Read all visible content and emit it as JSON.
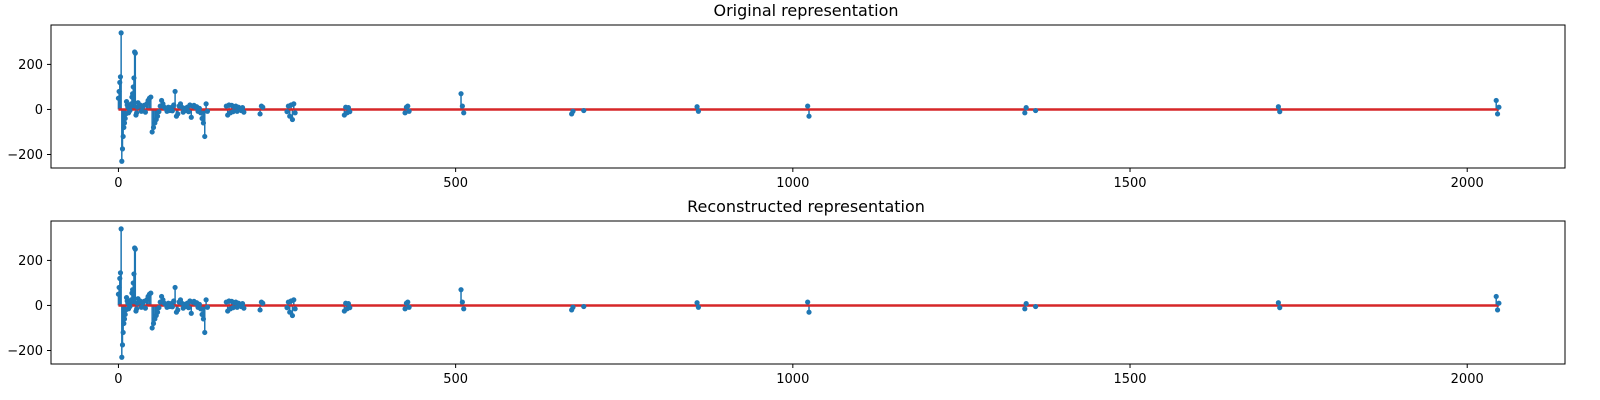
{
  "colors": {
    "stem": "#1f77b4",
    "baseline": "#d62728",
    "axes": "#000000",
    "background": "#ffffff"
  },
  "chart_data": [
    {
      "type": "stem",
      "title": "Original representation",
      "xlabel": "",
      "ylabel": "",
      "xlim": [
        -100,
        2145
      ],
      "ylim": [
        -260,
        375
      ],
      "xticks": [
        0,
        500,
        1000,
        1500,
        2000
      ],
      "yticks": [
        -200,
        0,
        200
      ],
      "grid": false,
      "baseline": 0,
      "points": [
        [
          0,
          50
        ],
        [
          1,
          80
        ],
        [
          2,
          120
        ],
        [
          3,
          145
        ],
        [
          4,
          340
        ],
        [
          5,
          -230
        ],
        [
          6,
          -175
        ],
        [
          7,
          -120
        ],
        [
          8,
          -80
        ],
        [
          9,
          -60
        ],
        [
          10,
          -40
        ],
        [
          11,
          -20
        ],
        [
          12,
          35
        ],
        [
          13,
          20
        ],
        [
          14,
          10
        ],
        [
          15,
          -15
        ],
        [
          16,
          5
        ],
        [
          17,
          -5
        ],
        [
          18,
          15
        ],
        [
          19,
          25
        ],
        [
          20,
          55
        ],
        [
          21,
          70
        ],
        [
          22,
          100
        ],
        [
          23,
          140
        ],
        [
          24,
          255
        ],
        [
          25,
          250
        ],
        [
          26,
          -25
        ],
        [
          27,
          -15
        ],
        [
          28,
          10
        ],
        [
          29,
          30
        ],
        [
          30,
          15
        ],
        [
          32,
          20
        ],
        [
          34,
          -8
        ],
        [
          36,
          10
        ],
        [
          38,
          18
        ],
        [
          40,
          -12
        ],
        [
          42,
          25
        ],
        [
          44,
          40
        ],
        [
          46,
          50
        ],
        [
          48,
          55
        ],
        [
          50,
          -100
        ],
        [
          52,
          -80
        ],
        [
          54,
          -60
        ],
        [
          56,
          -45
        ],
        [
          58,
          -30
        ],
        [
          60,
          -10
        ],
        [
          62,
          15
        ],
        [
          64,
          40
        ],
        [
          66,
          25
        ],
        [
          68,
          10
        ],
        [
          70,
          5
        ],
        [
          72,
          -8
        ],
        [
          74,
          10
        ],
        [
          76,
          -5
        ],
        [
          78,
          8
        ],
        [
          80,
          -6
        ],
        [
          82,
          20
        ],
        [
          84,
          80
        ],
        [
          86,
          -30
        ],
        [
          88,
          -20
        ],
        [
          90,
          15
        ],
        [
          92,
          25
        ],
        [
          94,
          10
        ],
        [
          96,
          -12
        ],
        [
          98,
          5
        ],
        [
          100,
          -5
        ],
        [
          102,
          10
        ],
        [
          104,
          -10
        ],
        [
          106,
          20
        ],
        [
          108,
          -35
        ],
        [
          110,
          15
        ],
        [
          112,
          18
        ],
        [
          114,
          10
        ],
        [
          116,
          12
        ],
        [
          118,
          -8
        ],
        [
          120,
          5
        ],
        [
          122,
          -15
        ],
        [
          124,
          -40
        ],
        [
          126,
          -60
        ],
        [
          128,
          -120
        ],
        [
          130,
          25
        ],
        [
          132,
          -8
        ],
        [
          160,
          15
        ],
        [
          162,
          -25
        ],
        [
          164,
          20
        ],
        [
          166,
          -15
        ],
        [
          168,
          18
        ],
        [
          170,
          -10
        ],
        [
          172,
          12
        ],
        [
          174,
          15
        ],
        [
          176,
          -8
        ],
        [
          178,
          10
        ],
        [
          180,
          5
        ],
        [
          182,
          -5
        ],
        [
          184,
          8
        ],
        [
          186,
          -12
        ],
        [
          210,
          -20
        ],
        [
          212,
          15
        ],
        [
          214,
          10
        ],
        [
          250,
          -10
        ],
        [
          252,
          15
        ],
        [
          254,
          -30
        ],
        [
          256,
          20
        ],
        [
          258,
          -45
        ],
        [
          260,
          25
        ],
        [
          262,
          -15
        ],
        [
          335,
          -25
        ],
        [
          337,
          10
        ],
        [
          339,
          -15
        ],
        [
          341,
          8
        ],
        [
          343,
          -10
        ],
        [
          425,
          -15
        ],
        [
          427,
          10
        ],
        [
          429,
          15
        ],
        [
          431,
          -8
        ],
        [
          508,
          70
        ],
        [
          510,
          15
        ],
        [
          512,
          -15
        ],
        [
          672,
          -20
        ],
        [
          674,
          -8
        ],
        [
          690,
          -5
        ],
        [
          858,
          12
        ],
        [
          860,
          -8
        ],
        [
          1022,
          15
        ],
        [
          1024,
          -30
        ],
        [
          1344,
          -15
        ],
        [
          1346,
          8
        ],
        [
          1360,
          -5
        ],
        [
          1720,
          12
        ],
        [
          1722,
          -10
        ],
        [
          2043,
          40
        ],
        [
          2045,
          -20
        ],
        [
          2047,
          10
        ]
      ]
    },
    {
      "type": "stem",
      "title": "Reconstructed representation",
      "xlabel": "",
      "ylabel": "",
      "xlim": [
        -100,
        2145
      ],
      "ylim": [
        -260,
        375
      ],
      "xticks": [
        0,
        500,
        1000,
        1500,
        2000
      ],
      "yticks": [
        -200,
        0,
        200
      ],
      "grid": false,
      "baseline": 0,
      "points": [
        [
          0,
          50
        ],
        [
          1,
          80
        ],
        [
          2,
          120
        ],
        [
          3,
          145
        ],
        [
          4,
          340
        ],
        [
          5,
          -230
        ],
        [
          6,
          -175
        ],
        [
          7,
          -120
        ],
        [
          8,
          -80
        ],
        [
          9,
          -60
        ],
        [
          10,
          -40
        ],
        [
          11,
          -20
        ],
        [
          12,
          35
        ],
        [
          13,
          20
        ],
        [
          14,
          10
        ],
        [
          15,
          -15
        ],
        [
          16,
          5
        ],
        [
          17,
          -5
        ],
        [
          18,
          15
        ],
        [
          19,
          25
        ],
        [
          20,
          55
        ],
        [
          21,
          70
        ],
        [
          22,
          100
        ],
        [
          23,
          140
        ],
        [
          24,
          255
        ],
        [
          25,
          250
        ],
        [
          26,
          -25
        ],
        [
          27,
          -15
        ],
        [
          28,
          10
        ],
        [
          29,
          30
        ],
        [
          30,
          15
        ],
        [
          32,
          20
        ],
        [
          34,
          -8
        ],
        [
          36,
          10
        ],
        [
          38,
          18
        ],
        [
          40,
          -12
        ],
        [
          42,
          25
        ],
        [
          44,
          40
        ],
        [
          46,
          50
        ],
        [
          48,
          55
        ],
        [
          50,
          -100
        ],
        [
          52,
          -80
        ],
        [
          54,
          -60
        ],
        [
          56,
          -45
        ],
        [
          58,
          -30
        ],
        [
          60,
          -10
        ],
        [
          62,
          15
        ],
        [
          64,
          40
        ],
        [
          66,
          25
        ],
        [
          68,
          10
        ],
        [
          70,
          5
        ],
        [
          72,
          -8
        ],
        [
          74,
          10
        ],
        [
          76,
          -5
        ],
        [
          78,
          8
        ],
        [
          80,
          -6
        ],
        [
          82,
          20
        ],
        [
          84,
          80
        ],
        [
          86,
          -30
        ],
        [
          88,
          -20
        ],
        [
          90,
          15
        ],
        [
          92,
          25
        ],
        [
          94,
          10
        ],
        [
          96,
          -12
        ],
        [
          98,
          5
        ],
        [
          100,
          -5
        ],
        [
          102,
          10
        ],
        [
          104,
          -10
        ],
        [
          106,
          20
        ],
        [
          108,
          -35
        ],
        [
          110,
          15
        ],
        [
          112,
          18
        ],
        [
          114,
          10
        ],
        [
          116,
          12
        ],
        [
          118,
          -8
        ],
        [
          120,
          5
        ],
        [
          122,
          -15
        ],
        [
          124,
          -40
        ],
        [
          126,
          -60
        ],
        [
          128,
          -120
        ],
        [
          130,
          25
        ],
        [
          132,
          -8
        ],
        [
          160,
          15
        ],
        [
          162,
          -25
        ],
        [
          164,
          20
        ],
        [
          166,
          -15
        ],
        [
          168,
          18
        ],
        [
          170,
          -10
        ],
        [
          172,
          12
        ],
        [
          174,
          15
        ],
        [
          176,
          -8
        ],
        [
          178,
          10
        ],
        [
          180,
          5
        ],
        [
          182,
          -5
        ],
        [
          184,
          8
        ],
        [
          186,
          -12
        ],
        [
          210,
          -20
        ],
        [
          212,
          15
        ],
        [
          214,
          10
        ],
        [
          250,
          -10
        ],
        [
          252,
          15
        ],
        [
          254,
          -30
        ],
        [
          256,
          20
        ],
        [
          258,
          -45
        ],
        [
          260,
          25
        ],
        [
          262,
          -15
        ],
        [
          335,
          -25
        ],
        [
          337,
          10
        ],
        [
          339,
          -15
        ],
        [
          341,
          8
        ],
        [
          343,
          -10
        ],
        [
          425,
          -15
        ],
        [
          427,
          10
        ],
        [
          429,
          15
        ],
        [
          431,
          -8
        ],
        [
          508,
          70
        ],
        [
          510,
          15
        ],
        [
          512,
          -15
        ],
        [
          672,
          -20
        ],
        [
          674,
          -8
        ],
        [
          690,
          -5
        ],
        [
          858,
          12
        ],
        [
          860,
          -8
        ],
        [
          1022,
          15
        ],
        [
          1024,
          -30
        ],
        [
          1344,
          -15
        ],
        [
          1346,
          8
        ],
        [
          1360,
          -5
        ],
        [
          1720,
          12
        ],
        [
          1722,
          -10
        ],
        [
          2043,
          40
        ],
        [
          2045,
          -20
        ],
        [
          2047,
          10
        ]
      ]
    }
  ]
}
